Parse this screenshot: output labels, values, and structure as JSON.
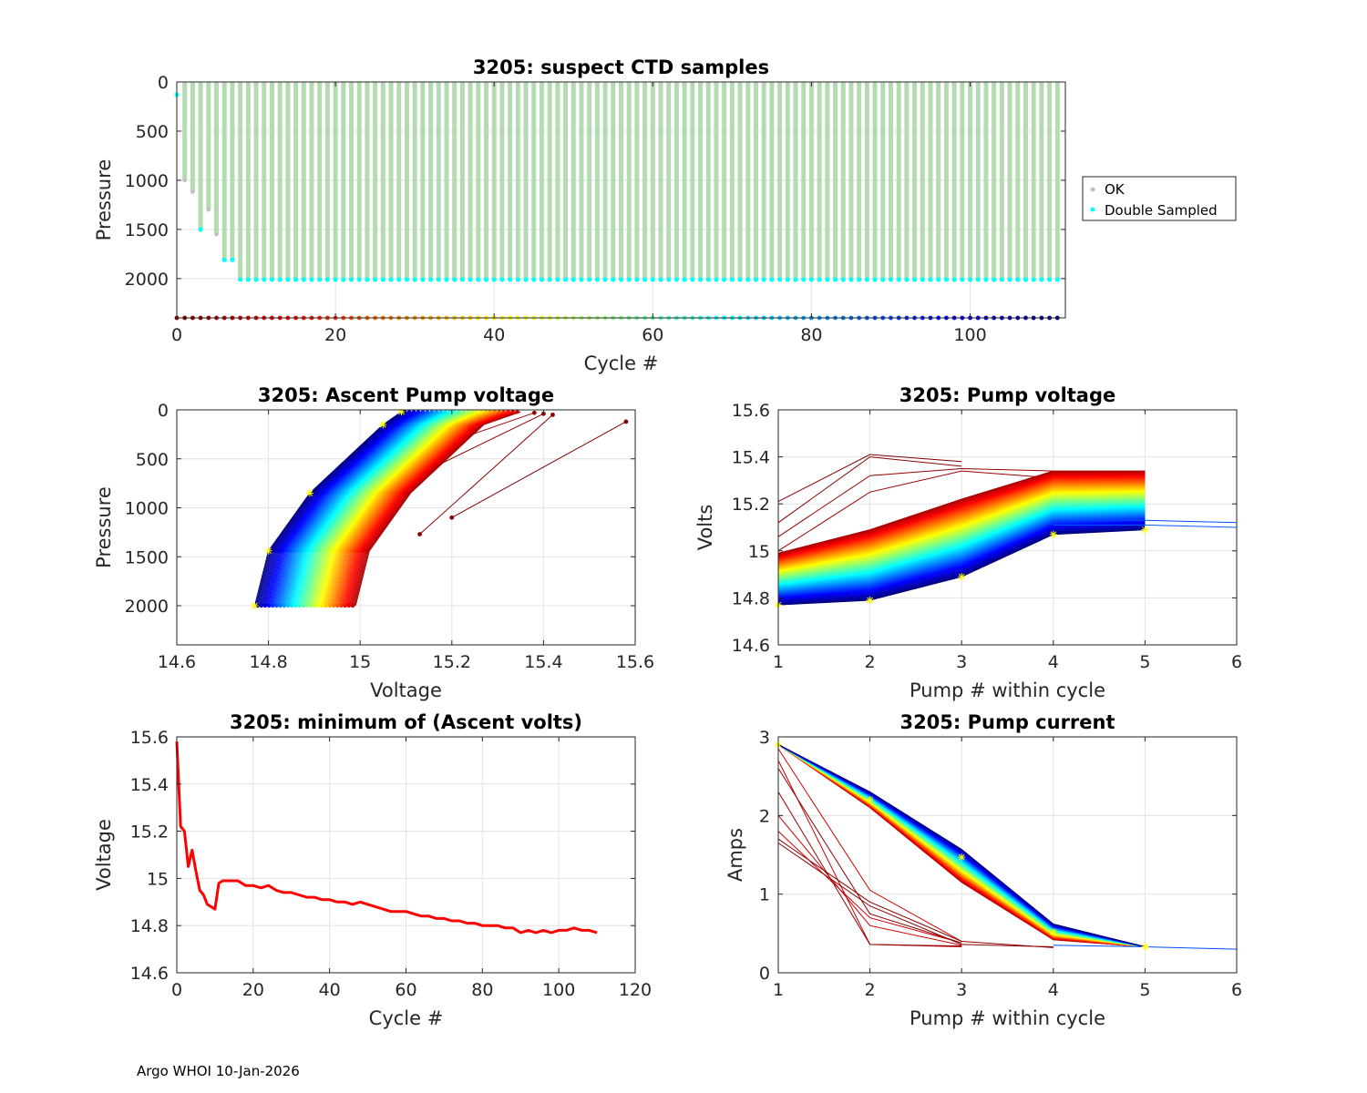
{
  "footer": "Argo WHOI 10-Jan-2026",
  "colors": {
    "ok": "#c0c0c0",
    "double_sampled": "#00ffff",
    "ok_fill": "#b5dbb0",
    "minvolt_line": "#ff0000",
    "marker": "#ffff00"
  },
  "chart_data": [
    {
      "id": "suspect",
      "type": "scatter",
      "title": "3205: suspect CTD samples",
      "xlabel": "Cycle #",
      "ylabel": "Pressure",
      "xlim": [
        0,
        112
      ],
      "ylim": [
        2400,
        0
      ],
      "xticks": [
        0,
        20,
        40,
        60,
        80,
        100
      ],
      "yticks": [
        0,
        500,
        1000,
        1500,
        2000
      ],
      "legend": [
        "OK",
        "Double Sampled"
      ],
      "legend_position": "outside-right",
      "cycles": [
        1,
        2,
        3,
        4,
        5,
        6,
        7,
        8,
        9,
        10,
        11,
        12,
        13,
        14,
        15,
        16,
        17,
        18,
        19,
        20,
        21,
        22,
        23,
        24,
        25,
        26,
        27,
        28,
        29,
        30,
        31,
        32,
        33,
        34,
        35,
        36,
        37,
        38,
        39,
        40,
        41,
        42,
        43,
        44,
        45,
        46,
        47,
        48,
        49,
        50,
        51,
        52,
        53,
        54,
        55,
        56,
        57,
        58,
        59,
        60,
        61,
        62,
        63,
        64,
        65,
        66,
        67,
        68,
        69,
        70,
        71,
        72,
        73,
        74,
        75,
        76,
        77,
        78,
        79,
        80,
        81,
        82,
        83,
        84,
        85,
        86,
        87,
        88,
        89,
        90,
        91,
        92,
        93,
        94,
        95,
        96,
        97,
        98,
        99,
        100,
        101,
        102,
        103,
        104,
        105,
        106,
        107,
        108,
        109,
        110,
        111
      ],
      "max_pressure": [
        1000,
        1120,
        1500,
        1300,
        1550,
        1810,
        1810,
        2010,
        2010,
        2010,
        2010,
        2010,
        2010,
        2010,
        2010,
        2010,
        2010,
        2010,
        2010,
        2010,
        2010,
        2010,
        2010,
        2010,
        2010,
        2010,
        2010,
        2010,
        2010,
        2010,
        2010,
        2010,
        2010,
        2010,
        2010,
        2010,
        2010,
        2010,
        2010,
        2010,
        2010,
        2010,
        2010,
        2010,
        2010,
        2010,
        2010,
        2010,
        2010,
        2010,
        2010,
        2010,
        2010,
        2010,
        2010,
        2010,
        2010,
        2010,
        2010,
        2010,
        2010,
        2010,
        2010,
        2010,
        2010,
        2010,
        2010,
        2010,
        2010,
        2010,
        2010,
        2010,
        2010,
        2010,
        2010,
        2010,
        2010,
        2010,
        2010,
        2010,
        2010,
        2010,
        2010,
        2010,
        2010,
        2010,
        2010,
        2010,
        2010,
        2010,
        2010,
        2010,
        2010,
        2010,
        2010,
        2010,
        2010,
        2010,
        2010,
        2010,
        2010,
        2010,
        2010,
        2010,
        2010,
        2010,
        2010,
        2010,
        2010,
        2010,
        2010
      ],
      "double_sampled_cycles": [
        0,
        3,
        6,
        7,
        8,
        9,
        10,
        11,
        12,
        13,
        14,
        15,
        16,
        17,
        18,
        19,
        20,
        21,
        22,
        23,
        24,
        25,
        26,
        27,
        28,
        29,
        30,
        31,
        32,
        33,
        34,
        35,
        36,
        37,
        38,
        39,
        40,
        41,
        42,
        43,
        44,
        45,
        46,
        47,
        48,
        49,
        50,
        51,
        52,
        53,
        54,
        55,
        56,
        57,
        58,
        59,
        60,
        61,
        62,
        63,
        64,
        65,
        66,
        67,
        68,
        69,
        70,
        71,
        72,
        73,
        74,
        75,
        76,
        77,
        78,
        79,
        80,
        81,
        82,
        83,
        84,
        85,
        86,
        87,
        88,
        89,
        90,
        91,
        92,
        93,
        94,
        95,
        96,
        97,
        98,
        99,
        100,
        101,
        102,
        103,
        104,
        105,
        106,
        107,
        108,
        109,
        110,
        111
      ],
      "double_sampled_pressure_first": 130,
      "bottom_marker_pressure": 2400
    },
    {
      "id": "ascent",
      "type": "line",
      "title": "3205: Ascent Pump voltage",
      "xlabel": "Voltage",
      "ylabel": "Pressure",
      "xlim": [
        14.6,
        15.6
      ],
      "ylim": [
        2400,
        0
      ],
      "xticks": [
        14.6,
        14.8,
        15,
        15.2,
        15.4,
        15.6
      ],
      "yticks": [
        0,
        500,
        1000,
        1500,
        2000
      ],
      "series_count": 111,
      "first_cycle_points": [
        [
          15.58,
          120
        ]
      ],
      "last_cycle_points": [
        [
          14.77,
          2000
        ],
        [
          14.8,
          1440
        ],
        [
          14.89,
          850
        ],
        [
          15.05,
          150
        ],
        [
          15.09,
          20
        ]
      ]
    },
    {
      "id": "pumpvolt",
      "type": "line",
      "title": "3205: Pump voltage",
      "xlabel": "Pump # within cycle",
      "ylabel": "Volts",
      "xlim": [
        1,
        6
      ],
      "ylim": [
        14.6,
        15.6
      ],
      "xticks": [
        1,
        2,
        3,
        4,
        5,
        6
      ],
      "yticks": [
        14.6,
        14.8,
        15,
        15.2,
        15.4,
        15.6
      ],
      "series_count": 111,
      "early_series": [
        [
          15.21,
          15.41,
          15.38
        ],
        [
          15.12,
          15.4,
          15.36
        ],
        [
          15.06,
          15.32,
          15.35,
          15.34
        ],
        [
          15.0,
          15.25,
          15.34,
          15.31
        ]
      ],
      "latest_series_markers": [
        [
          1,
          14.77
        ],
        [
          2,
          14.79
        ],
        [
          3,
          14.89
        ],
        [
          4,
          15.07
        ],
        [
          5,
          15.09
        ]
      ],
      "extended_series": [
        [
          4,
          15.13
        ],
        [
          5,
          15.13
        ],
        [
          6,
          15.12
        ]
      ]
    },
    {
      "id": "minvolt",
      "type": "line",
      "title": "3205: minimum of (Ascent volts)",
      "xlabel": "Cycle #",
      "ylabel": "Voltage",
      "xlim": [
        0,
        120
      ],
      "ylim": [
        14.6,
        15.6
      ],
      "xticks": [
        0,
        20,
        40,
        60,
        80,
        100,
        120
      ],
      "yticks": [
        14.6,
        14.8,
        15,
        15.2,
        15.4,
        15.6
      ],
      "x": [
        0,
        1,
        2,
        3,
        4,
        5,
        6,
        7,
        8,
        9,
        10,
        11,
        12,
        14,
        16,
        18,
        20,
        22,
        24,
        26,
        28,
        30,
        32,
        34,
        36,
        38,
        40,
        42,
        44,
        46,
        48,
        50,
        52,
        54,
        56,
        58,
        60,
        62,
        64,
        66,
        68,
        70,
        72,
        74,
        76,
        78,
        80,
        82,
        84,
        86,
        88,
        90,
        92,
        94,
        96,
        98,
        100,
        102,
        104,
        106,
        108,
        110
      ],
      "y": [
        15.58,
        15.22,
        15.2,
        15.05,
        15.12,
        15.03,
        14.95,
        14.93,
        14.89,
        14.88,
        14.87,
        14.98,
        14.99,
        14.99,
        14.99,
        14.97,
        14.97,
        14.96,
        14.97,
        14.95,
        14.94,
        14.94,
        14.93,
        14.92,
        14.92,
        14.91,
        14.91,
        14.9,
        14.9,
        14.89,
        14.9,
        14.89,
        14.88,
        14.87,
        14.86,
        14.86,
        14.86,
        14.85,
        14.84,
        14.84,
        14.83,
        14.83,
        14.82,
        14.82,
        14.81,
        14.81,
        14.8,
        14.8,
        14.8,
        14.79,
        14.79,
        14.77,
        14.78,
        14.77,
        14.78,
        14.77,
        14.78,
        14.78,
        14.79,
        14.78,
        14.78,
        14.77
      ]
    },
    {
      "id": "pumpcur",
      "type": "line",
      "title": "3205: Pump current",
      "xlabel": "Pump # within cycle",
      "ylabel": "Amps",
      "xlim": [
        1,
        6
      ],
      "ylim": [
        0,
        3
      ],
      "xticks": [
        1,
        2,
        3,
        4,
        5,
        6
      ],
      "yticks": [
        0,
        1,
        2,
        3
      ],
      "series_count": 111,
      "early_series": [
        [
          2.7,
          0.36,
          0.33
        ],
        [
          2.3,
          0.36,
          0.34
        ],
        [
          1.8,
          0.7,
          0.38
        ],
        [
          1.65,
          0.85,
          0.36,
          0.33
        ]
      ],
      "latest_series_markers": [
        [
          1,
          2.9
        ],
        [
          2,
          2.2
        ],
        [
          3,
          1.47
        ],
        [
          4,
          0.52
        ],
        [
          5,
          0.33
        ]
      ],
      "extended_series": [
        [
          4,
          0.35
        ],
        [
          5,
          0.33
        ],
        [
          6,
          0.3
        ]
      ]
    }
  ]
}
